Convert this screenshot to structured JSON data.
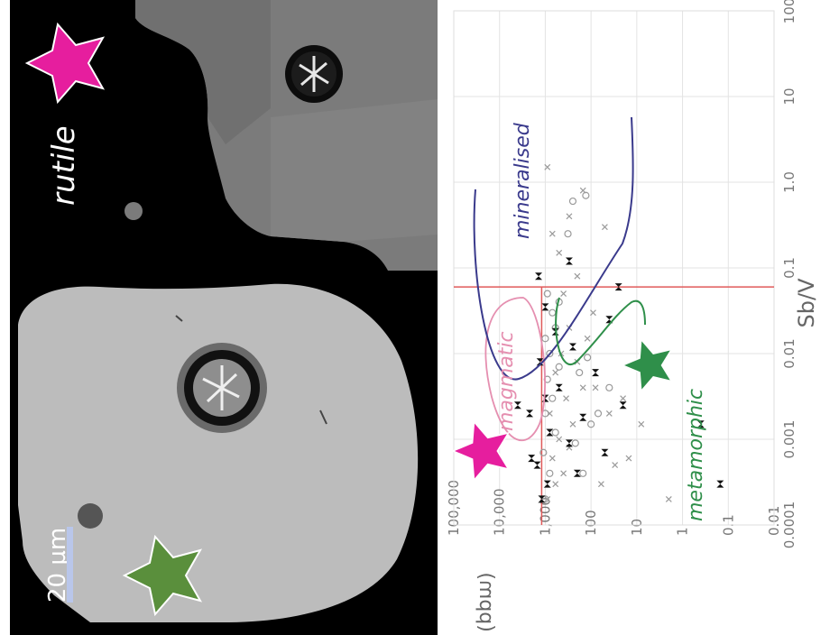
{
  "figure": {
    "mineral_label": "rutile",
    "scale_bar_label": "20 µm"
  },
  "colors": {
    "background_sem": "#000000",
    "grain_bright": "#bdbdbd",
    "grain_dark": "#7a7a7a",
    "magmatic": "#e58fb0",
    "mineralised": "#3a3a8c",
    "metamorphic": "#2f8f4a",
    "threshold_lines": "#e05a5a",
    "pink_star": "#e61e9e",
    "green_star": "#5a8f3c"
  },
  "chart_data": {
    "type": "scatter",
    "xlabel": "Sb/V",
    "ylabel": "W (ppm)",
    "x_scale": "log",
    "y_scale": "log",
    "xlim": [
      0.0001,
      100
    ],
    "ylim": [
      0.01,
      100000
    ],
    "x_ticks": [
      "0.0001",
      "0.001",
      "0.01",
      "0.1",
      "1.0",
      "10",
      "100"
    ],
    "y_ticks": [
      "0.01",
      "0.1",
      "1",
      "10",
      "100",
      "1,000",
      "10,000",
      "100,000"
    ],
    "grid": true,
    "thresholds": {
      "x": 0.06,
      "y": 1200
    },
    "field_labels": [
      "magmatic",
      "mineralised",
      "metamorphic"
    ],
    "series": [
      {
        "marker": "x",
        "color": "#9a9a9a",
        "points": [
          [
            0.0002,
            900
          ],
          [
            0.0003,
            600
          ],
          [
            0.0004,
            400
          ],
          [
            0.0006,
            700
          ],
          [
            0.0008,
            300
          ],
          [
            0.001,
            500
          ],
          [
            0.0015,
            250
          ],
          [
            0.002,
            800
          ],
          [
            0.003,
            350
          ],
          [
            0.004,
            150
          ],
          [
            0.006,
            600
          ],
          [
            0.008,
            200
          ],
          [
            0.01,
            450
          ],
          [
            0.015,
            120
          ],
          [
            0.02,
            300
          ],
          [
            0.03,
            90
          ],
          [
            0.05,
            400
          ],
          [
            0.08,
            200
          ],
          [
            0.15,
            500
          ],
          [
            0.25,
            700
          ],
          [
            0.4,
            300
          ],
          [
            0.8,
            150
          ],
          [
            1.5,
            900
          ],
          [
            0.3,
            50
          ],
          [
            0.0003,
            60
          ],
          [
            0.0005,
            30
          ],
          [
            0.002,
            40
          ],
          [
            0.004,
            80
          ],
          [
            0.0002,
            2
          ],
          [
            0.0006,
            15
          ],
          [
            0.0015,
            8
          ],
          [
            0.003,
            20
          ]
        ]
      },
      {
        "marker": "o",
        "color": "#9a9a9a",
        "points": [
          [
            0.0002,
            1000
          ],
          [
            0.0004,
            800
          ],
          [
            0.0007,
            1100
          ],
          [
            0.0012,
            600
          ],
          [
            0.002,
            1000
          ],
          [
            0.003,
            700
          ],
          [
            0.005,
            900
          ],
          [
            0.007,
            500
          ],
          [
            0.01,
            800
          ],
          [
            0.015,
            1000
          ],
          [
            0.02,
            600
          ],
          [
            0.03,
            700
          ],
          [
            0.04,
            500
          ],
          [
            0.05,
            900
          ],
          [
            0.6,
            250
          ],
          [
            0.7,
            130
          ],
          [
            0.25,
            320
          ],
          [
            0.0004,
            150
          ],
          [
            0.0009,
            220
          ],
          [
            0.0015,
            100
          ],
          [
            0.002,
            70
          ],
          [
            0.006,
            180
          ],
          [
            0.009,
            120
          ],
          [
            0.004,
            40
          ]
        ]
      },
      {
        "marker": "⌛",
        "color": "#111111",
        "points": [
          [
            0.0002,
            1200
          ],
          [
            0.0003,
            900
          ],
          [
            0.0004,
            200
          ],
          [
            0.0005,
            1500
          ],
          [
            0.0007,
            50
          ],
          [
            0.0009,
            300
          ],
          [
            0.0012,
            800
          ],
          [
            0.0018,
            150
          ],
          [
            0.0025,
            20
          ],
          [
            0.003,
            1000
          ],
          [
            0.004,
            500
          ],
          [
            0.006,
            80
          ],
          [
            0.008,
            1300
          ],
          [
            0.012,
            250
          ],
          [
            0.018,
            600
          ],
          [
            0.025,
            40
          ],
          [
            0.035,
            1000
          ],
          [
            0.06,
            25
          ],
          [
            0.08,
            1400
          ],
          [
            0.12,
            300
          ],
          [
            0.0015,
            0.4
          ],
          [
            0.0003,
            0.15
          ],
          [
            0.0006,
            2000
          ],
          [
            0.0025,
            4000
          ],
          [
            0.002,
            2200
          ]
        ]
      }
    ],
    "curves": [
      {
        "name": "magmatic",
        "color": "#e58fb0"
      },
      {
        "name": "mineralised",
        "color": "#3a3a8c"
      },
      {
        "name": "metamorphic",
        "color": "#2f8f4a"
      }
    ]
  }
}
